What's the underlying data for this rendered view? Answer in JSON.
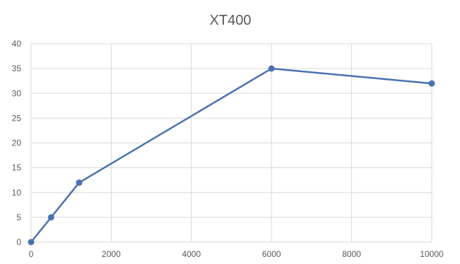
{
  "chart_data": {
    "type": "scatter",
    "title": "XT400",
    "xlabel": "",
    "ylabel": "",
    "xlim": [
      0,
      10000
    ],
    "ylim": [
      0,
      40
    ],
    "x_ticks": [
      0,
      2000,
      4000,
      6000,
      8000,
      10000
    ],
    "x_tick_labels": [
      "0",
      "2000",
      "4000",
      "6000",
      "8000",
      "10000"
    ],
    "y_ticks": [
      0,
      5,
      10,
      15,
      20,
      25,
      30,
      35,
      40
    ],
    "y_tick_labels": [
      "0",
      "5",
      "10",
      "15",
      "20",
      "25",
      "30",
      "35",
      "40"
    ],
    "grid": true,
    "legend": "none",
    "line_style": "straight lines with markers",
    "series": [
      {
        "color": "#4a72b0",
        "points": [
          {
            "x": 0,
            "y": 0
          },
          {
            "x": 500,
            "y": 5
          },
          {
            "x": 1200,
            "y": 12
          },
          {
            "x": 6000,
            "y": 35
          },
          {
            "x": 10000,
            "y": 32
          }
        ]
      }
    ],
    "gridline_color": "#d9d9d9",
    "text_color": "#595959"
  }
}
